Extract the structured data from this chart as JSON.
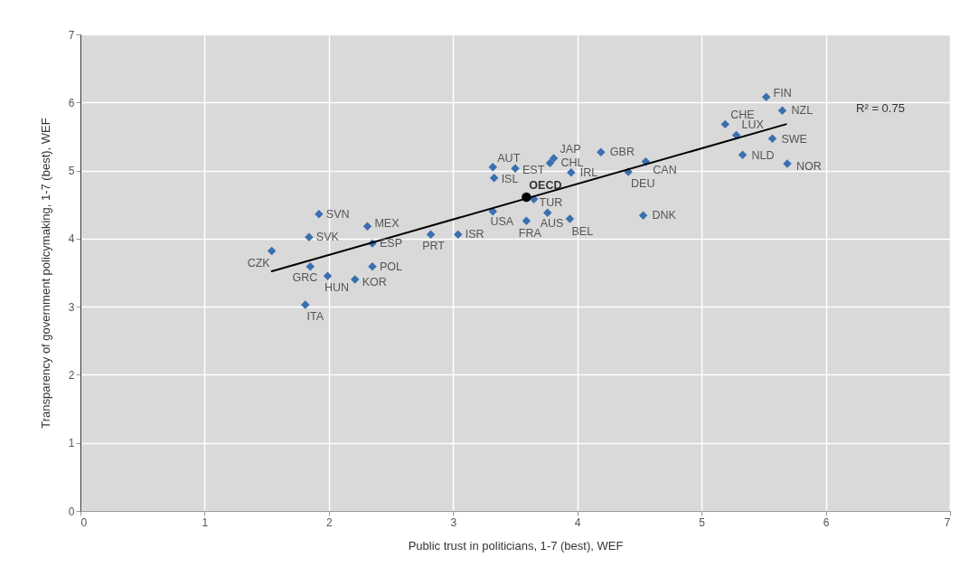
{
  "chart_data": {
    "type": "scatter",
    "xlabel": "Public trust in politicians, 1-7 (best), WEF",
    "ylabel": "Transparency of government policymaking, 1-7 (best), WEF",
    "xlim": [
      0,
      7
    ],
    "xticks": [
      0,
      1,
      2,
      3,
      4,
      5,
      6,
      7
    ],
    "ylim": [
      0,
      7
    ],
    "yticks": [
      0,
      1,
      2,
      3,
      4,
      5,
      6,
      7
    ],
    "grid": true,
    "series": [
      {
        "marker": "diamond",
        "color": "#3a6fb0",
        "x": [
          1.54,
          1.84,
          1.92,
          1.85,
          1.99,
          1.81,
          2.21,
          2.35,
          2.35,
          2.31,
          2.82,
          3.04,
          3.32,
          3.32,
          3.33,
          3.5,
          3.81,
          3.78,
          3.95,
          4.19,
          4.41,
          4.55,
          4.53,
          3.65,
          3.76,
          3.59,
          3.94,
          5.52,
          5.65,
          5.19,
          5.28,
          5.57,
          5.33,
          5.69
        ],
        "values": [
          3.82,
          4.02,
          4.36,
          3.59,
          3.45,
          3.03,
          3.4,
          3.59,
          3.93,
          4.18,
          4.06,
          4.06,
          4.4,
          5.05,
          4.89,
          5.03,
          5.18,
          5.11,
          4.97,
          5.27,
          4.98,
          5.13,
          4.34,
          4.58,
          4.38,
          4.26,
          4.29,
          6.08,
          5.88,
          5.68,
          5.52,
          5.47,
          5.23,
          5.1
        ]
      },
      {
        "marker": "circle",
        "color": "#000000",
        "x": [
          3.59
        ],
        "values": [
          4.61
        ]
      },
      {
        "type": "line",
        "color": "#000000",
        "x": [
          1.54,
          5.68
        ],
        "values": [
          3.52,
          5.68
        ]
      }
    ],
    "annotations": [
      {
        "text": "CZK",
        "x": 1.54,
        "y": 3.82
      },
      {
        "text": "SVK",
        "x": 1.84,
        "y": 4.02
      },
      {
        "text": "SVN",
        "x": 1.92,
        "y": 4.36
      },
      {
        "text": "GRC",
        "x": 1.85,
        "y": 3.59
      },
      {
        "text": "HUN",
        "x": 1.99,
        "y": 3.45
      },
      {
        "text": "ITA",
        "x": 1.81,
        "y": 3.03
      },
      {
        "text": "KOR",
        "x": 2.21,
        "y": 3.4
      },
      {
        "text": "POL",
        "x": 2.35,
        "y": 3.59
      },
      {
        "text": "ESP",
        "x": 2.35,
        "y": 3.93
      },
      {
        "text": "MEX",
        "x": 2.31,
        "y": 4.18
      },
      {
        "text": "PRT",
        "x": 2.82,
        "y": 4.06
      },
      {
        "text": "ISR",
        "x": 3.04,
        "y": 4.06
      },
      {
        "text": "USA",
        "x": 3.32,
        "y": 4.4
      },
      {
        "text": "AUT",
        "x": 3.32,
        "y": 5.05
      },
      {
        "text": "ISL",
        "x": 3.33,
        "y": 4.89
      },
      {
        "text": "EST",
        "x": 3.5,
        "y": 5.03
      },
      {
        "text": "JAP",
        "x": 3.81,
        "y": 5.18
      },
      {
        "text": "CHL",
        "x": 3.78,
        "y": 5.11
      },
      {
        "text": "IRL",
        "x": 3.95,
        "y": 4.97
      },
      {
        "text": "GBR",
        "x": 4.19,
        "y": 5.27
      },
      {
        "text": "DEU",
        "x": 4.41,
        "y": 4.98
      },
      {
        "text": "CAN",
        "x": 4.55,
        "y": 5.13
      },
      {
        "text": "DNK",
        "x": 4.53,
        "y": 4.34
      },
      {
        "text": "TUR",
        "x": 3.65,
        "y": 4.58
      },
      {
        "text": "AUS",
        "x": 3.76,
        "y": 4.38
      },
      {
        "text": "FRA",
        "x": 3.59,
        "y": 4.26
      },
      {
        "text": "BEL",
        "x": 3.94,
        "y": 4.29
      },
      {
        "text": "FIN",
        "x": 5.52,
        "y": 6.08
      },
      {
        "text": "NZL",
        "x": 5.65,
        "y": 5.88
      },
      {
        "text": "CHE",
        "x": 5.19,
        "y": 5.68
      },
      {
        "text": "LUX",
        "x": 5.28,
        "y": 5.52
      },
      {
        "text": "SWE",
        "x": 5.57,
        "y": 5.47
      },
      {
        "text": "NLD",
        "x": 5.33,
        "y": 5.23
      },
      {
        "text": "NOR",
        "x": 5.69,
        "y": 5.1
      },
      {
        "text": "OECD",
        "x": 3.59,
        "y": 4.61
      },
      "R² = 0.75"
    ]
  }
}
